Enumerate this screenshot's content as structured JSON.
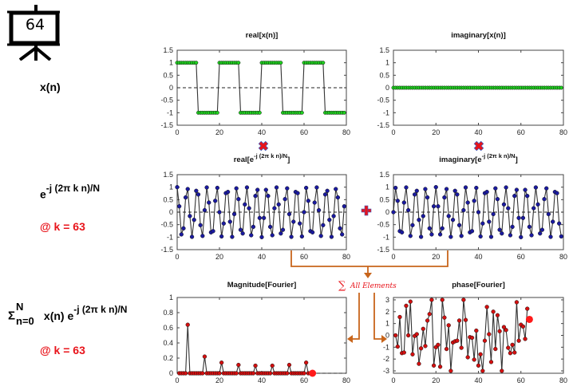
{
  "badge": {
    "icon": "presentation-board-icon",
    "value": "64"
  },
  "row_labels": {
    "signal": "x(n)",
    "basis_base": "e",
    "basis_exp": "-j (2π k n)/N",
    "basis_k": "@ k = 63",
    "dft_sigma": "Σ",
    "dft_upper": "N",
    "dft_lower": "n=0",
    "dft_mid": "x(n) e",
    "dft_exp": "-j (2π k n)/N",
    "dft_k": "@ k = 63"
  },
  "operators": {
    "multiply_icon": "multiply-x-icon",
    "plus_icon": "plus-icon",
    "sum_label": "All Elements",
    "sum_symbol": "∑"
  },
  "colors": {
    "green_marker": "#1fd21f",
    "blue_marker": "#1a1aa0",
    "red_marker": "#d40f0f",
    "highlight": "#ff1a1a",
    "arrow": "#c8651b",
    "operator_red": "#e8141b",
    "operator_blue": "#3a5bbf"
  },
  "parameters": {
    "N": 80,
    "k": 63
  },
  "chart_data": [
    {
      "id": "real-x",
      "type": "line",
      "title": "real[x(n)]",
      "xlim": [
        0,
        80
      ],
      "ylim": [
        -1.5,
        1.5
      ],
      "xticks": [
        "0",
        "20",
        "40",
        "60",
        "80"
      ],
      "yticks": [
        "1.5",
        "1",
        "0.5",
        "0",
        "-0.5",
        "-1",
        "-1.5"
      ],
      "zero_line": true,
      "marker_color": "green",
      "description": "square wave: +1 for n mod 20 < 10, -1 otherwise, n = 0..79",
      "x": [
        0,
        1,
        2,
        3,
        4,
        5,
        6,
        7,
        8,
        9,
        10,
        11,
        12,
        13,
        14,
        15,
        16,
        17,
        18,
        19,
        20,
        21,
        22,
        23,
        24,
        25,
        26,
        27,
        28,
        29,
        30,
        31,
        32,
        33,
        34,
        35,
        36,
        37,
        38,
        39,
        40,
        41,
        42,
        43,
        44,
        45,
        46,
        47,
        48,
        49,
        50,
        51,
        52,
        53,
        54,
        55,
        56,
        57,
        58,
        59,
        60,
        61,
        62,
        63,
        64,
        65,
        66,
        67,
        68,
        69,
        70,
        71,
        72,
        73,
        74,
        75,
        76,
        77,
        78,
        79
      ],
      "values": [
        1,
        1,
        1,
        1,
        1,
        1,
        1,
        1,
        1,
        1,
        -1,
        -1,
        -1,
        -1,
        -1,
        -1,
        -1,
        -1,
        -1,
        -1,
        1,
        1,
        1,
        1,
        1,
        1,
        1,
        1,
        1,
        1,
        -1,
        -1,
        -1,
        -1,
        -1,
        -1,
        -1,
        -1,
        -1,
        -1,
        1,
        1,
        1,
        1,
        1,
        1,
        1,
        1,
        1,
        1,
        -1,
        -1,
        -1,
        -1,
        -1,
        -1,
        -1,
        -1,
        -1,
        -1,
        1,
        1,
        1,
        1,
        1,
        1,
        1,
        1,
        1,
        1,
        -1,
        -1,
        -1,
        -1,
        -1,
        -1,
        -1,
        -1,
        -1,
        -1
      ]
    },
    {
      "id": "imag-x",
      "type": "line",
      "title": "imaginary[x(n)]",
      "xlim": [
        0,
        80
      ],
      "ylim": [
        -1.5,
        1.5
      ],
      "xticks": [
        "0",
        "20",
        "40",
        "60",
        "80"
      ],
      "yticks": [
        "1.5",
        "1",
        "0.5",
        "0",
        "-0.5",
        "-1",
        "-1.5"
      ],
      "zero_line": true,
      "marker_color": "green",
      "x": [
        0,
        1,
        2,
        3,
        4,
        5,
        6,
        7,
        8,
        9,
        10,
        11,
        12,
        13,
        14,
        15,
        16,
        17,
        18,
        19,
        20,
        21,
        22,
        23,
        24,
        25,
        26,
        27,
        28,
        29,
        30,
        31,
        32,
        33,
        34,
        35,
        36,
        37,
        38,
        39,
        40,
        41,
        42,
        43,
        44,
        45,
        46,
        47,
        48,
        49,
        50,
        51,
        52,
        53,
        54,
        55,
        56,
        57,
        58,
        59,
        60,
        61,
        62,
        63,
        64,
        65,
        66,
        67,
        68,
        69,
        70,
        71,
        72,
        73,
        74,
        75,
        76,
        77,
        78,
        79
      ],
      "values": [
        0,
        0,
        0,
        0,
        0,
        0,
        0,
        0,
        0,
        0,
        0,
        0,
        0,
        0,
        0,
        0,
        0,
        0,
        0,
        0,
        0,
        0,
        0,
        0,
        0,
        0,
        0,
        0,
        0,
        0,
        0,
        0,
        0,
        0,
        0,
        0,
        0,
        0,
        0,
        0,
        0,
        0,
        0,
        0,
        0,
        0,
        0,
        0,
        0,
        0,
        0,
        0,
        0,
        0,
        0,
        0,
        0,
        0,
        0,
        0,
        0,
        0,
        0,
        0,
        0,
        0,
        0,
        0,
        0,
        0,
        0,
        0,
        0,
        0,
        0,
        0,
        0,
        0,
        0,
        0
      ]
    },
    {
      "id": "real-basis",
      "type": "line",
      "title_base": "real[e",
      "title_exp": "-j (2π k n)/N",
      "title_end": "]",
      "xlim": [
        0,
        80
      ],
      "ylim": [
        -1.5,
        1.5
      ],
      "xticks": [
        "0",
        "20",
        "40",
        "60",
        "80"
      ],
      "yticks": [
        "1.5",
        "1",
        "0.5",
        "0",
        "-0.5",
        "-1",
        "-1.5"
      ],
      "zero_line": true,
      "marker_color": "blue",
      "description": "cos(2π·63·n/80), n = 0..79",
      "x": [
        0,
        1,
        2,
        3,
        4,
        5,
        6,
        7,
        8,
        9,
        10,
        11,
        12,
        13,
        14,
        15,
        16,
        17,
        18,
        19,
        20,
        21,
        22,
        23,
        24,
        25,
        26,
        27,
        28,
        29,
        30,
        31,
        32,
        33,
        34,
        35,
        36,
        37,
        38,
        39,
        40,
        41,
        42,
        43,
        44,
        45,
        46,
        47,
        48,
        49,
        50,
        51,
        52,
        53,
        54,
        55,
        56,
        57,
        58,
        59,
        60,
        61,
        62,
        63,
        64,
        65,
        66,
        67,
        68,
        69,
        70,
        71,
        72,
        73,
        74,
        75,
        76,
        77,
        78,
        79
      ],
      "values": [
        1.0,
        0.233,
        -0.891,
        -0.649,
        0.588,
        0.924,
        -0.156,
        -0.988,
        -0.309,
        0.853,
        0.707,
        -0.522,
        -0.951,
        0.078,
        0.988,
        0.383,
        -0.809,
        -0.76,
        0.454,
        0.972,
        0.0,
        -0.972,
        -0.454,
        0.76,
        0.809,
        -0.383,
        -0.988,
        -0.078,
        0.951,
        0.522,
        -0.707,
        -0.853,
        0.309,
        0.988,
        0.156,
        -0.924,
        -0.588,
        0.649,
        0.891,
        -0.233,
        -1.0,
        -0.233,
        0.891,
        0.649,
        -0.588,
        -0.924,
        0.156,
        0.988,
        0.309,
        -0.853,
        -0.707,
        0.522,
        0.951,
        -0.078,
        -0.988,
        -0.383,
        0.809,
        0.76,
        -0.454,
        -0.972,
        0.0,
        0.972,
        0.454,
        -0.76,
        -0.809,
        0.383,
        0.988,
        0.078,
        -0.951,
        -0.522,
        0.707,
        0.853,
        -0.309,
        -0.988,
        -0.156,
        0.924,
        0.588,
        -0.649,
        -0.891,
        0.233
      ]
    },
    {
      "id": "imag-basis",
      "type": "line",
      "title_base": "imaginary[e",
      "title_exp": "-j (2π k n)/N",
      "title_end": "]",
      "xlim": [
        0,
        80
      ],
      "ylim": [
        -1.5,
        1.5
      ],
      "xticks": [
        "0",
        "20",
        "40",
        "60",
        "80"
      ],
      "yticks": [
        "1.5",
        "1",
        "0.5",
        "0",
        "-0.5",
        "-1",
        "-1.5"
      ],
      "zero_line": true,
      "marker_color": "blue",
      "description": "-sin(2π·63·n/80), n = 0..79",
      "x": [
        0,
        1,
        2,
        3,
        4,
        5,
        6,
        7,
        8,
        9,
        10,
        11,
        12,
        13,
        14,
        15,
        16,
        17,
        18,
        19,
        20,
        21,
        22,
        23,
        24,
        25,
        26,
        27,
        28,
        29,
        30,
        31,
        32,
        33,
        34,
        35,
        36,
        37,
        38,
        39,
        40,
        41,
        42,
        43,
        44,
        45,
        46,
        47,
        48,
        49,
        50,
        51,
        52,
        53,
        54,
        55,
        56,
        57,
        58,
        59,
        60,
        61,
        62,
        63,
        64,
        65,
        66,
        67,
        68,
        69,
        70,
        71,
        72,
        73,
        74,
        75,
        76,
        77,
        78,
        79
      ],
      "values": [
        0.0,
        0.972,
        0.454,
        -0.76,
        -0.809,
        0.383,
        0.988,
        0.078,
        -0.951,
        -0.522,
        0.707,
        0.853,
        -0.309,
        -0.988,
        -0.156,
        0.924,
        0.588,
        -0.649,
        -0.891,
        0.233,
        1.0,
        0.233,
        -0.891,
        -0.649,
        0.588,
        0.924,
        -0.156,
        -0.988,
        -0.309,
        0.853,
        0.707,
        -0.522,
        -0.951,
        0.078,
        0.988,
        0.383,
        -0.809,
        -0.76,
        0.454,
        0.972,
        0.0,
        -0.972,
        -0.454,
        0.76,
        0.809,
        -0.383,
        -0.988,
        -0.078,
        0.951,
        0.522,
        -0.707,
        -0.853,
        0.309,
        0.988,
        0.156,
        -0.924,
        -0.588,
        0.649,
        0.891,
        -0.233,
        -1.0,
        -0.233,
        0.891,
        0.649,
        -0.588,
        -0.924,
        0.156,
        0.988,
        0.309,
        -0.853,
        -0.707,
        0.522,
        0.951,
        -0.078,
        -0.988,
        -0.383,
        0.809,
        0.76,
        -0.454,
        -0.972
      ]
    },
    {
      "id": "magnitude",
      "type": "line",
      "title": "Magnitude[Fourier]",
      "xlim": [
        0,
        80
      ],
      "ylim": [
        0,
        1
      ],
      "xticks": [
        "0",
        "20",
        "40",
        "60",
        "80"
      ],
      "yticks": [
        "1",
        "0.8",
        "0.6",
        "0.4",
        "0.2",
        "0"
      ],
      "zero_line": true,
      "marker_color": "red",
      "x": [
        1,
        2,
        3,
        4,
        5,
        6,
        7,
        8,
        9,
        10,
        11,
        12,
        13,
        14,
        15,
        16,
        17,
        18,
        19,
        20,
        21,
        22,
        23,
        24,
        25,
        26,
        27,
        28,
        29,
        30,
        31,
        32,
        33,
        34,
        35,
        36,
        37,
        38,
        39,
        40,
        41,
        42,
        43,
        44,
        45,
        46,
        47,
        48,
        49,
        50,
        51,
        52,
        53,
        54,
        55,
        56,
        57,
        58,
        59,
        60,
        61,
        62,
        63
      ],
      "values": [
        0,
        0,
        0,
        0,
        0.64,
        0,
        0,
        0,
        0,
        0,
        0,
        0,
        0.22,
        0,
        0,
        0,
        0,
        0,
        0,
        0,
        0.14,
        0,
        0,
        0,
        0,
        0,
        0,
        0,
        0.11,
        0,
        0,
        0,
        0,
        0,
        0,
        0,
        0.1,
        0,
        0,
        0,
        0,
        0,
        0,
        0,
        0.1,
        0,
        0,
        0,
        0,
        0,
        0,
        0,
        0.11,
        0,
        0,
        0,
        0,
        0,
        0,
        0,
        0.14,
        0,
        0
      ],
      "highlight": {
        "x": 64,
        "value": 0
      }
    },
    {
      "id": "phase",
      "type": "line",
      "title": "phase[Fourier]",
      "xlim": [
        0,
        80
      ],
      "ylim": [
        -3.2,
        3.2
      ],
      "xticks": [
        "0",
        "20",
        "40",
        "60",
        "80"
      ],
      "yticks": [
        "3",
        "2",
        "1",
        "0",
        "-1",
        "-2",
        "-3"
      ],
      "zero_line": false,
      "marker_color": "red",
      "x": [
        1,
        2,
        3,
        4,
        5,
        6,
        7,
        8,
        9,
        10,
        11,
        12,
        13,
        14,
        15,
        16,
        17,
        18,
        19,
        20,
        21,
        22,
        23,
        24,
        25,
        26,
        27,
        28,
        29,
        30,
        31,
        32,
        33,
        34,
        35,
        36,
        37,
        38,
        39,
        40,
        41,
        42,
        43,
        44,
        45,
        46,
        47,
        48,
        49,
        50,
        51,
        52,
        53,
        54,
        55,
        56,
        57,
        58,
        59,
        60,
        61,
        62,
        63
      ],
      "values": [
        0,
        -0.95,
        1.55,
        -1.5,
        -1.45,
        2.5,
        0,
        2.85,
        -1.6,
        -0.05,
        0.1,
        -2.4,
        -1.1,
        0.55,
        -0.9,
        1.25,
        1.8,
        3.0,
        -2.55,
        -1.0,
        -0.8,
        -2.65,
        3.0,
        1.5,
        -1.15,
        0.85,
        -3.0,
        -0.6,
        -0.5,
        -0.45,
        1.25,
        -1.05,
        3.0,
        1.3,
        -1.85,
        -0.15,
        -0.2,
        -2.05,
        0.4,
        -2.55,
        -1.6,
        -3.0,
        -0.45,
        2.4,
        0.1,
        -2.25,
        2.0,
        -1.15,
        1.7,
        0.35,
        -3.0,
        0.7,
        0.45,
        -1.05,
        -1.5,
        -0.8,
        -1.45,
        2.8,
        -0.45,
        0.9,
        0.75,
        -0.3,
        2.25
      ],
      "highlight": {
        "x": 64,
        "value": 1.35
      }
    }
  ]
}
